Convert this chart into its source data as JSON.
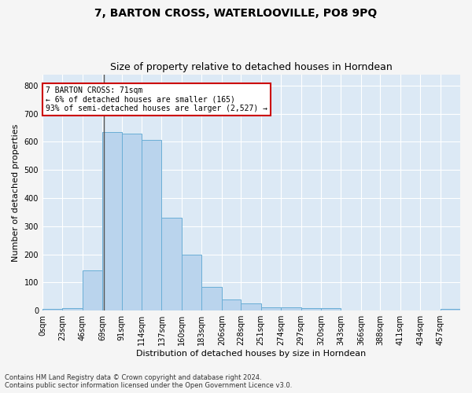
{
  "title": "7, BARTON CROSS, WATERLOOVILLE, PO8 9PQ",
  "subtitle": "Size of property relative to detached houses in Horndean",
  "xlabel": "Distribution of detached houses by size in Horndean",
  "ylabel": "Number of detached properties",
  "bar_color": "#bad4ed",
  "bar_edge_color": "#6aaed6",
  "background_color": "#dce9f5",
  "annotation_box_color": "#ffffff",
  "annotation_border_color": "#cc0000",
  "annotation_line1": "7 BARTON CROSS: 71sqm",
  "annotation_line2": "← 6% of detached houses are smaller (165)",
  "annotation_line3": "93% of semi-detached houses are larger (2,527) →",
  "vline_x": 71,
  "vline_color": "#555555",
  "categories": [
    "0sqm",
    "23sqm",
    "46sqm",
    "69sqm",
    "91sqm",
    "114sqm",
    "137sqm",
    "160sqm",
    "183sqm",
    "206sqm",
    "228sqm",
    "251sqm",
    "274sqm",
    "297sqm",
    "320sqm",
    "343sqm",
    "366sqm",
    "388sqm",
    "411sqm",
    "434sqm",
    "457sqm"
  ],
  "bin_edges": [
    0,
    23,
    46,
    69,
    91,
    114,
    137,
    160,
    183,
    206,
    228,
    251,
    274,
    297,
    320,
    343,
    366,
    388,
    411,
    434,
    457,
    480
  ],
  "values": [
    5,
    8,
    143,
    635,
    630,
    607,
    330,
    199,
    84,
    40,
    25,
    12,
    12,
    8,
    8,
    0,
    0,
    0,
    0,
    0,
    5
  ],
  "ylim": [
    0,
    840
  ],
  "yticks": [
    0,
    100,
    200,
    300,
    400,
    500,
    600,
    700,
    800
  ],
  "footer1": "Contains HM Land Registry data © Crown copyright and database right 2024.",
  "footer2": "Contains public sector information licensed under the Open Government Licence v3.0.",
  "grid_color": "#ffffff",
  "title_fontsize": 10,
  "subtitle_fontsize": 9,
  "tick_fontsize": 7,
  "label_fontsize": 8,
  "annotation_fontsize": 7,
  "footer_fontsize": 6
}
